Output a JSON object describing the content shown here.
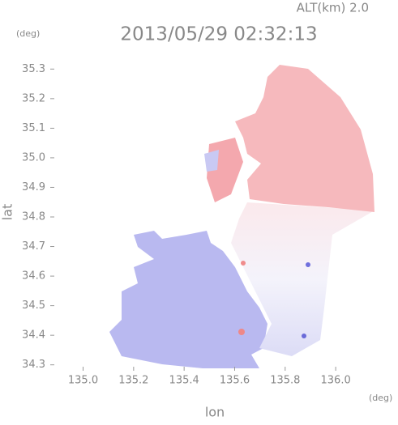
{
  "chart_data": {
    "type": "map",
    "title": "2013/05/29 02:32:13",
    "subtitle": "ALT(km) 2.0",
    "x_unit": "(deg)",
    "y_unit": "(deg)",
    "xlabel": "lon",
    "ylabel": "lat",
    "xlim": [
      134.87,
      136.16
    ],
    "ylim": [
      34.28,
      35.32
    ],
    "xticks": [
      {
        "value": 135,
        "label": "135.0"
      },
      135.2,
      135.4,
      135.6,
      135.8,
      {
        "value": 136,
        "label": "136.0"
      }
    ],
    "yticks": [
      34.3,
      34.4,
      34.5,
      34.6,
      34.7,
      34.8,
      34.9,
      {
        "value": 35,
        "label": "35.0"
      },
      35.1,
      35.2,
      35.3
    ]
  }
}
